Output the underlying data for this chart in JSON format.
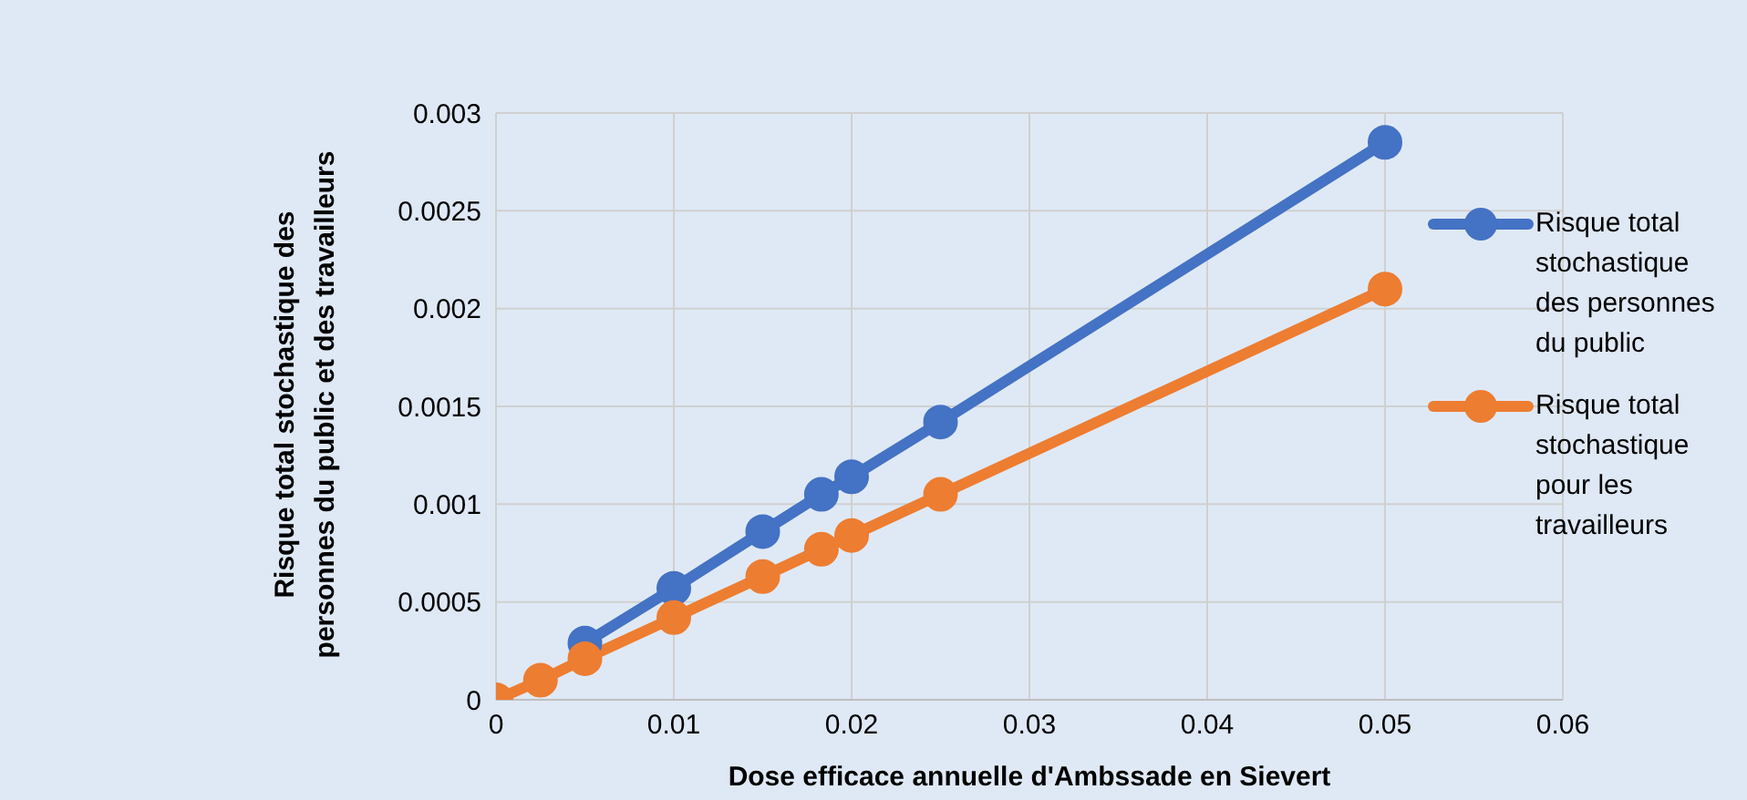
{
  "chart_data": {
    "type": "line",
    "xlabel": "Dose efficace annuelle d'Ambssade en Sievert",
    "ylabel": "Risque total stochastique des personnes du public et des travailleurs",
    "x": [
      0,
      0.0025,
      0.005,
      0.01,
      0.015,
      0.0183,
      0.02,
      0.025,
      0.05
    ],
    "series": [
      {
        "name": "Risque total stochastique des personnes du public",
        "color": "#4472c4",
        "values": [
          null,
          null,
          0.00029,
          0.00057,
          0.00086,
          0.00105,
          0.00114,
          0.00142,
          0.00285
        ]
      },
      {
        "name": "Risque total stochastique pour les travailleurs",
        "color": "#ed7d31",
        "values": [
          0,
          0.0001,
          0.00021,
          0.00042,
          0.00063,
          0.00077,
          0.00084,
          0.00105,
          0.0021
        ]
      }
    ],
    "xlim": [
      0,
      0.06
    ],
    "xticks": [
      0,
      0.01,
      0.02,
      0.03,
      0.04,
      0.05,
      0.06
    ],
    "ylim": [
      0,
      0.003
    ],
    "yticks": [
      0,
      0.0005,
      0.001,
      0.0015,
      0.002,
      0.0025,
      0.003
    ],
    "grid": true,
    "legend": "right",
    "marker": "circle",
    "line_style": "solid"
  }
}
